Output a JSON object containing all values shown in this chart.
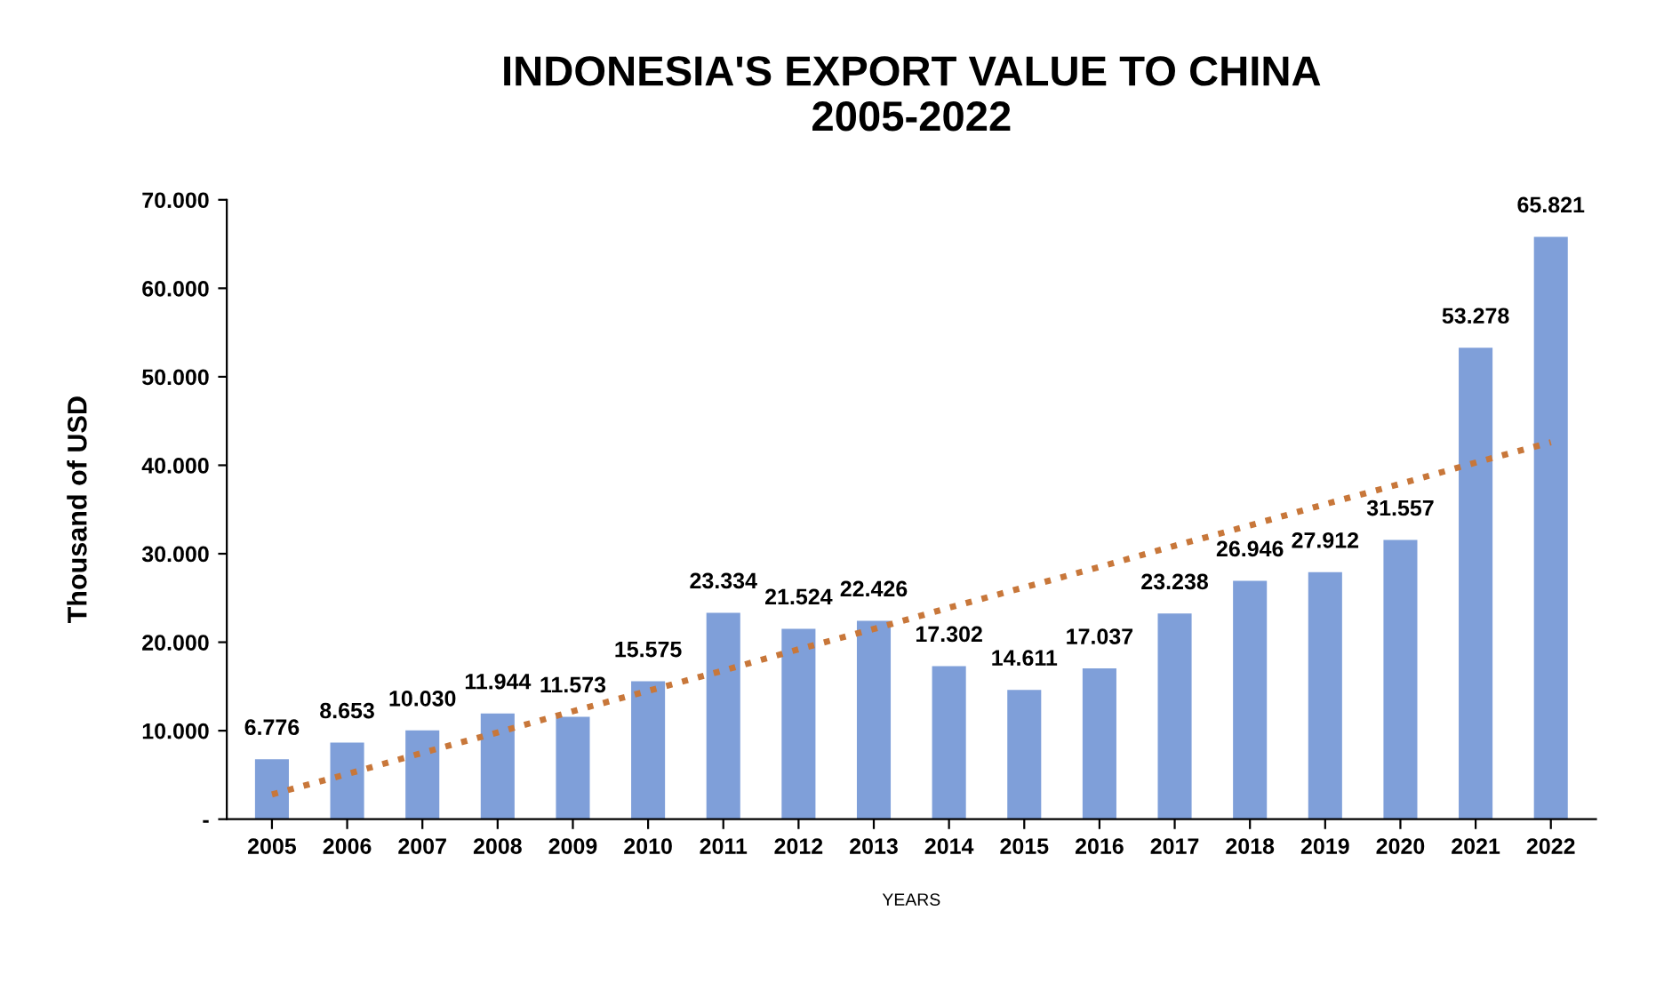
{
  "chart_data": {
    "type": "bar",
    "title": "INDONESIA'S EXPORT VALUE TO CHINA\n2005-2022",
    "xlabel": "YEARS",
    "ylabel": "Thousand of USD",
    "categories": [
      "2005",
      "2006",
      "2007",
      "2008",
      "2009",
      "2010",
      "2011",
      "2012",
      "2013",
      "2014",
      "2015",
      "2016",
      "2017",
      "2018",
      "2019",
      "2020",
      "2021",
      "2022"
    ],
    "series": [
      {
        "color": "#7f9fd9",
        "values": [
          6776,
          8653,
          10030,
          11944,
          11573,
          15575,
          23334,
          21524,
          22426,
          17302,
          14611,
          17037,
          23238,
          26946,
          27912,
          31557,
          53278,
          65821
        ],
        "value_labels": [
          "6.776",
          "8.653",
          "10.030",
          "11.944",
          "11.573",
          "15.575",
          "23.334",
          "21.524",
          "22.426",
          "17.302",
          "14.611",
          "17.037",
          "23.238",
          "26.946",
          "27.912",
          "31.557",
          "53.278",
          "65.821"
        ]
      },
      {
        "type": "line",
        "color": "#c8773a",
        "line_style": "dotted",
        "values": [
          2800,
          5100,
          7500,
          9800,
          12200,
          14500,
          16800,
          19200,
          21500,
          23900,
          26200,
          28500,
          30900,
          33200,
          35600,
          37900,
          40300,
          42600
        ]
      }
    ],
    "ylim": [
      0,
      70000
    ],
    "yticks": [
      {
        "value": 0,
        "label": "-"
      },
      {
        "value": 10000,
        "label": "10.000"
      },
      {
        "value": 20000,
        "label": "20.000"
      },
      {
        "value": 30000,
        "label": "30.000"
      },
      {
        "value": 40000,
        "label": "40.000"
      },
      {
        "value": 50000,
        "label": "50.000"
      },
      {
        "value": 60000,
        "label": "60.000"
      },
      {
        "value": 70000,
        "label": "70.000"
      }
    ],
    "grid": false,
    "legend": false
  }
}
